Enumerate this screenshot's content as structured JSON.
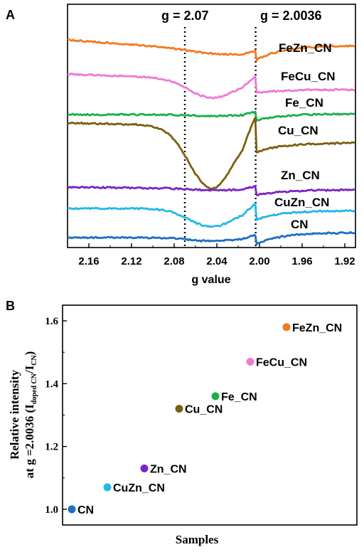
{
  "chart_data": [
    {
      "panel": "A",
      "type": "line",
      "xlabel": "g value",
      "ylabel": "",
      "x_reversed": true,
      "xlim": [
        2.18,
        1.91
      ],
      "x_ticks": [
        "2.16",
        "2.12",
        "2.08",
        "2.04",
        "2.00",
        "1.96",
        "1.92"
      ],
      "x_tick_values": [
        2.16,
        2.12,
        2.08,
        2.04,
        2.0,
        1.96,
        1.92
      ],
      "y_ticks_visible": false,
      "annotations": [
        {
          "label": "g = 2.07",
          "g": 2.07,
          "style": "dotted vertical line"
        },
        {
          "label": "g = 2.0036",
          "g": 2.0036,
          "style": "dotted vertical line"
        }
      ],
      "series": [
        {
          "name": "FeZn_CN",
          "color": "#f47a20"
        },
        {
          "name": "FeCu_CN",
          "color": "#ee7ad2"
        },
        {
          "name": "Fe_CN",
          "color": "#18b04a"
        },
        {
          "name": "Cu_CN",
          "color": "#7c5f10"
        },
        {
          "name": "Zn_CN",
          "color": "#7b24c4"
        },
        {
          "name": "CuZn_CN",
          "color": "#22b8ea"
        },
        {
          "name": "CN",
          "color": "#1f6fc0"
        }
      ]
    },
    {
      "panel": "B",
      "type": "scatter",
      "xlabel": "Samples",
      "ylabel_line1": "Relative intensity",
      "ylabel_prefix": "at g =2.0036 (I",
      "ylabel_sub1": "doped CN",
      "ylabel_mid": "/I",
      "ylabel_sub2": "CN",
      "ylabel_suffix": ")",
      "ylim": [
        0.95,
        1.65
      ],
      "y_ticks": [
        "1.0",
        "1.2",
        "1.4",
        "1.6"
      ],
      "y_tick_values": [
        1.0,
        1.2,
        1.4,
        1.6
      ],
      "points": [
        {
          "label": "CN",
          "x": 1,
          "y": 1.0,
          "color": "#1f6fc0"
        },
        {
          "label": "CuZn_CN",
          "x": 2,
          "y": 1.07,
          "color": "#22b8ea"
        },
        {
          "label": "Zn_CN",
          "x": 3,
          "y": 1.13,
          "color": "#7b24c4"
        },
        {
          "label": "Cu_CN",
          "x": 4,
          "y": 1.32,
          "color": "#7c5f10"
        },
        {
          "label": "Fe_CN",
          "x": 5,
          "y": 1.36,
          "color": "#18b04a"
        },
        {
          "label": "FeCu_CN",
          "x": 6,
          "y": 1.47,
          "color": "#ee7ad2"
        },
        {
          "label": "FeZn_CN",
          "x": 7,
          "y": 1.58,
          "color": "#f47a20"
        }
      ]
    }
  ]
}
